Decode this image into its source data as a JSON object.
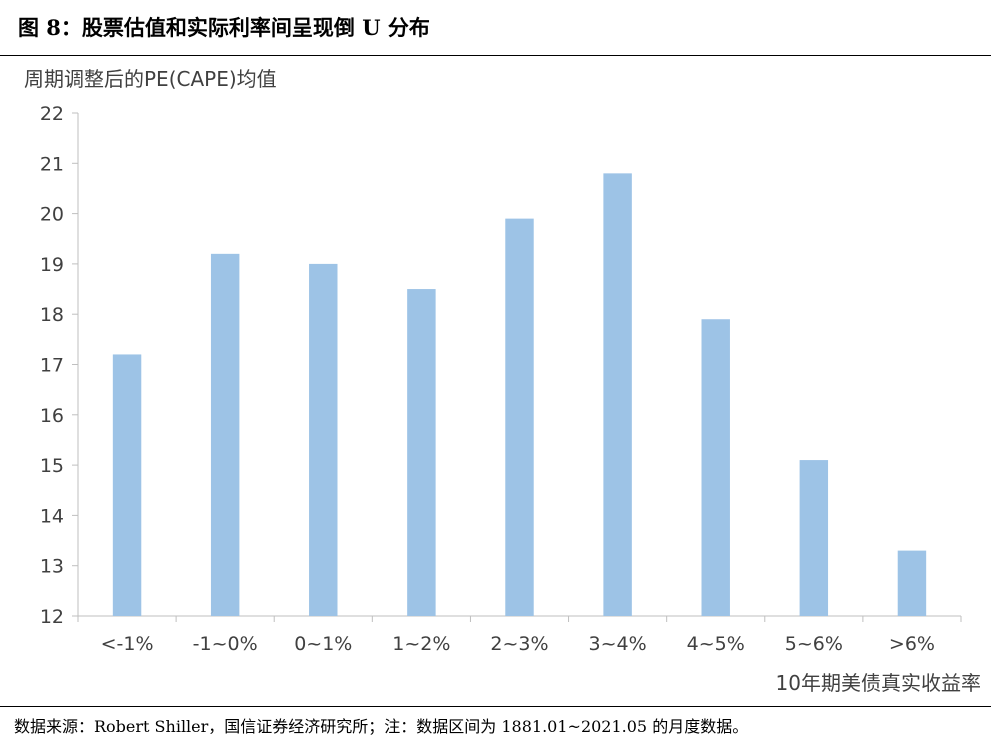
{
  "figure": {
    "title": "图 8：股票估值和实际利率间呈现倒 U 分布",
    "source": "数据来源：Robert Shiller，国信证券经济研究所；注：数据区间为 1881.01~2021.05 的月度数据。"
  },
  "chart_data": {
    "type": "bar",
    "title": "",
    "ylabel": "周期调整后的PE(CAPE)均值",
    "xlabel": "10年期美债真实收益率",
    "categories": [
      "<-1%",
      "-1~0%",
      "0~1%",
      "1~2%",
      "2~3%",
      "3~4%",
      "4~5%",
      "5~6%",
      ">6%"
    ],
    "series": [
      {
        "values": [
          17.2,
          19.2,
          19.0,
          18.5,
          19.9,
          20.8,
          17.9,
          15.1,
          13.3
        ]
      }
    ],
    "ylim": [
      12,
      22
    ],
    "yticks": [
      12,
      13,
      14,
      15,
      16,
      17,
      18,
      19,
      20,
      21,
      22
    ],
    "grid": false,
    "legend": "none",
    "colors": {
      "bar": "#9DC3E6",
      "axis": "#BFBFBF",
      "text": "#404040"
    }
  }
}
